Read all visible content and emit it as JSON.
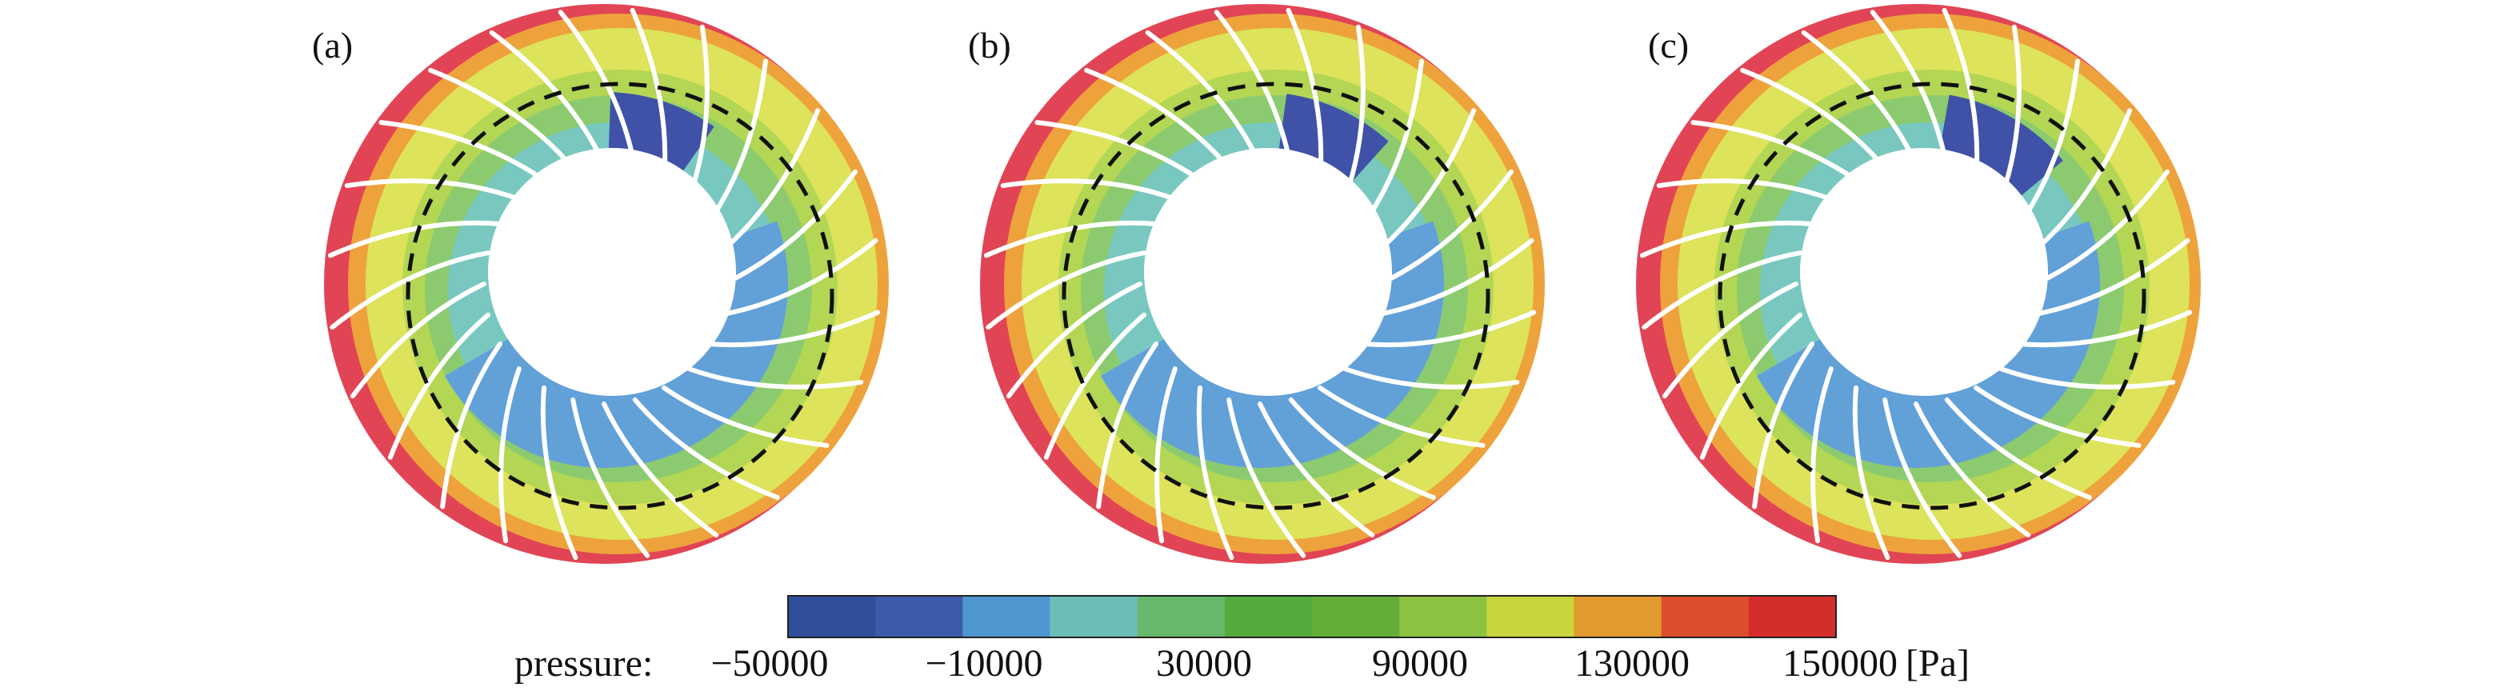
{
  "panels": [
    {
      "label": "(a)",
      "dark_region_deg": [
        -88,
        -55
      ],
      "ring_phase": 0
    },
    {
      "label": "(b)",
      "dark_region_deg": [
        -82,
        -48
      ],
      "ring_phase": 1
    },
    {
      "label": "(c)",
      "dark_region_deg": [
        -80,
        -40
      ],
      "ring_phase": 2
    }
  ],
  "colorbar": {
    "title": "pressure:",
    "unit": "[Pa]",
    "tick_labels": [
      "−50000",
      "−10000",
      "30000",
      "90000",
      "130000",
      "150000"
    ],
    "colors": [
      "#2f4f9b",
      "#3d5aa8",
      "#4f97d0",
      "#6cbdb7",
      "#67b86b",
      "#55aa3c",
      "#62ae37",
      "#8cc241",
      "#c9d43c",
      "#e09a2d",
      "#db4d2b",
      "#d32d2c"
    ]
  },
  "palette": {
    "deep_blue": "#3f52a8",
    "blue": "#62a0d8",
    "teal": "#78c8c0",
    "green": "#8cca70",
    "light_green": "#b3d655",
    "yellow": "#dde35a",
    "orange": "#eea23c",
    "red": "#e14555",
    "blade": "#ffffff",
    "dashed_circle": "#111111"
  }
}
